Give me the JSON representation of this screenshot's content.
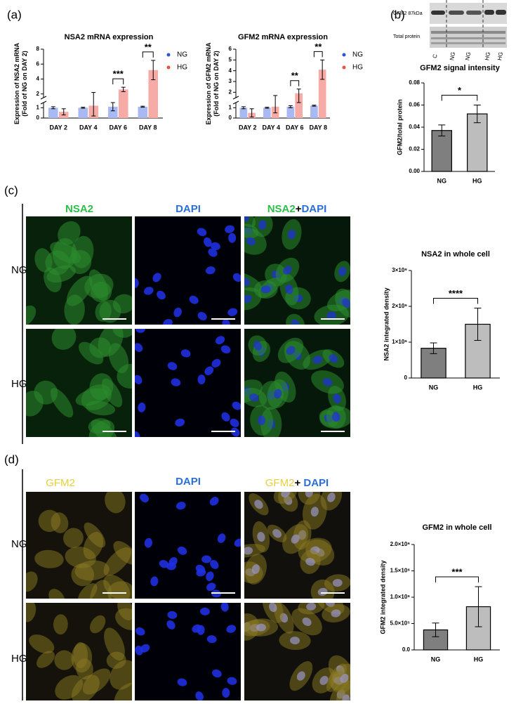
{
  "panel_labels": [
    "(a)",
    "(b)",
    "(c)",
    "(d)"
  ],
  "blot": {
    "rows": [
      "GFM2 87kDa",
      "Total protein"
    ],
    "lanes": [
      "C",
      "NG",
      "NG",
      "HG",
      "HG"
    ]
  },
  "panel_c": {
    "columns": [
      "NSA2",
      "DAPI"
    ],
    "merge_joiner": "+",
    "rows": [
      "NG",
      "HG"
    ]
  },
  "panel_d": {
    "columns": [
      "GFM2",
      "DAPI"
    ],
    "merge_joiner": "+ ",
    "rows": [
      "NG",
      "HG"
    ]
  },
  "chart_data": [
    {
      "type": "grouped_bar",
      "title": "NSA2 mRNA expression",
      "ylabel": [
        "Expression of NSA2 mRNA",
        "(Fold of NG on DAY 2)"
      ],
      "categories": [
        "DAY 2",
        "DAY 4",
        "DAY 6",
        "DAY 8"
      ],
      "series": [
        {
          "name": "NG",
          "color": "#a9b9f2",
          "point_color": "#2f55d4",
          "values": [
            1,
            1,
            1.1,
            1.1
          ],
          "errors": [
            0.1,
            0.05,
            0.4,
            0.05
          ]
        },
        {
          "name": "HG",
          "color": "#f7aba6",
          "point_color": "#e5533f",
          "values": [
            0.6,
            1.2,
            2.6,
            5.2
          ],
          "errors": [
            0.3,
            1,
            0.3,
            1.3
          ]
        }
      ],
      "significance": [
        null,
        null,
        "***",
        "**"
      ],
      "ylim": [
        0,
        8
      ],
      "ybreak": 1.5,
      "yticks": [
        0,
        1,
        2,
        4,
        6,
        8
      ],
      "legend": "right"
    },
    {
      "type": "grouped_bar",
      "title": "GFM2 mRNA expression",
      "ylabel": [
        "Expression of GFM2 mRNA",
        "(Fold of NG on DAY 2)"
      ],
      "categories": [
        "DAY 2",
        "DAY 4",
        "DAY 6",
        "DAY 8"
      ],
      "series": [
        {
          "name": "NG",
          "color": "#a9b9f2",
          "point_color": "#2f55d4",
          "values": [
            1,
            1,
            1.1,
            1.2
          ],
          "errors": [
            0.1,
            0.05,
            0.1,
            0.05
          ]
        },
        {
          "name": "HG",
          "color": "#f7aba6",
          "point_color": "#e5533f",
          "values": [
            0.5,
            1.1,
            1.9,
            4.1
          ],
          "errors": [
            0.4,
            0.6,
            0.4,
            0.9
          ]
        }
      ],
      "significance": [
        null,
        null,
        "**",
        "**"
      ],
      "ylim": [
        0,
        6
      ],
      "ybreak": 1.5,
      "yticks": [
        0,
        1,
        2,
        3,
        4,
        5,
        6
      ],
      "legend": "right"
    },
    {
      "type": "bar",
      "title": "GFM2 signal intensity",
      "ylabel": [
        "GFM2/total protein"
      ],
      "categories": [
        "NG",
        "HG"
      ],
      "values": [
        0.037,
        0.052
      ],
      "errors": [
        0.005,
        0.008
      ],
      "colors": [
        "#7f7f7f",
        "#bdbdbd"
      ],
      "significance": "*",
      "ylim": [
        0,
        0.08
      ],
      "yticks": [
        {
          "value": 0,
          "label": "0.00"
        },
        0.02,
        0.04,
        0.06,
        0.08
      ]
    },
    {
      "type": "bar",
      "title": "NSA2 in whole cell",
      "ylabel": [
        "NSA2 integrated density"
      ],
      "categories": [
        "NG",
        "HG"
      ],
      "values": [
        830000,
        1500000
      ],
      "errors": [
        150000,
        450000
      ],
      "colors": [
        "#7f7f7f",
        "#bdbdbd"
      ],
      "significance": "****",
      "ylim": [
        0,
        3000000
      ],
      "yticks": [
        0,
        {
          "value": 1000000,
          "label": "1×10⁶"
        },
        {
          "value": 2000000,
          "label": "2×10⁶"
        },
        {
          "value": 3000000,
          "label": "3×10⁶"
        }
      ]
    },
    {
      "type": "bar",
      "title": "GFM2 in whole cell",
      "ylabel": [
        "GFM2 integrated density"
      ],
      "categories": [
        "NG",
        "HG"
      ],
      "values": [
        380000,
        820000
      ],
      "errors": [
        130000,
        380000
      ],
      "colors": [
        "#7f7f7f",
        "#bdbdbd"
      ],
      "significance": "***",
      "ylim": [
        0,
        2000000
      ],
      "yticks": [
        {
          "value": 0,
          "label": "0.0"
        },
        {
          "value": 500000,
          "label": "5.0×10⁵"
        },
        {
          "value": 1000000,
          "label": "1.0×10⁶"
        },
        {
          "value": 1500000,
          "label": "1.5×10⁶"
        },
        {
          "value": 2000000,
          "label": "2.0×10⁶"
        }
      ]
    }
  ]
}
